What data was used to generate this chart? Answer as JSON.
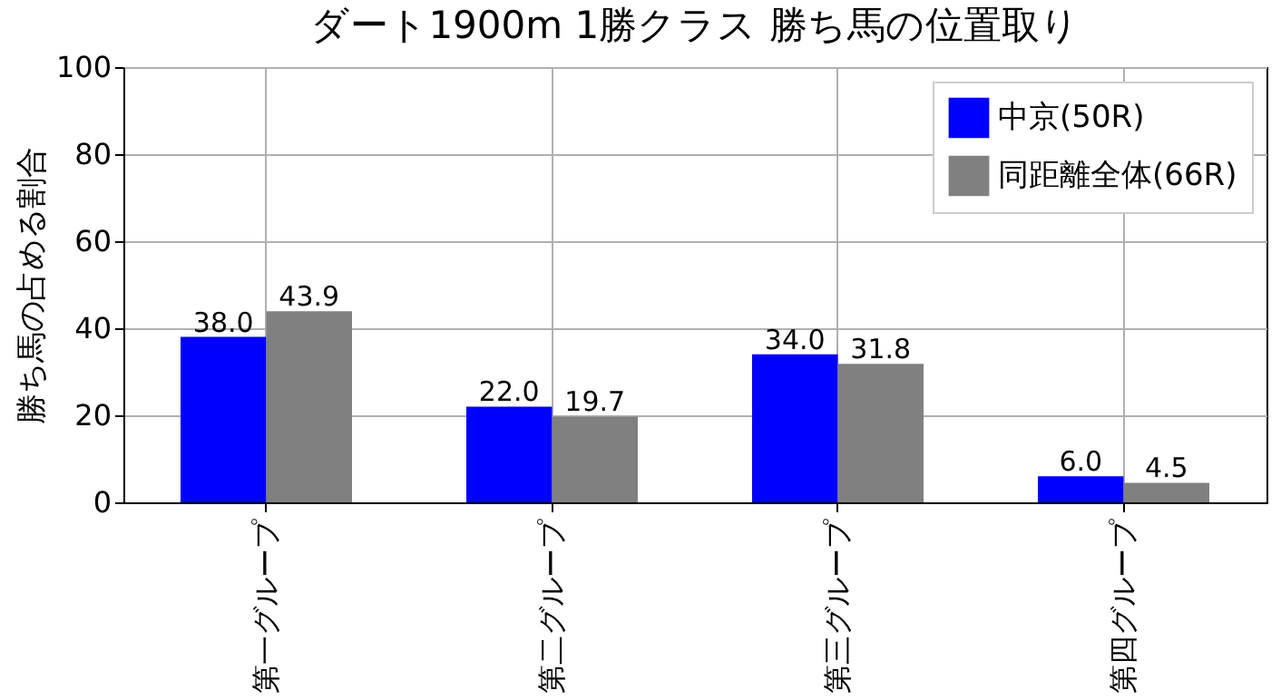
{
  "chart_data": {
    "type": "bar",
    "title": "ダート1900m 1勝クラス 勝ち馬の位置取り",
    "ylabel": "勝ち馬の占める割合",
    "categories": [
      "第一グループ",
      "第二グループ",
      "第三グループ",
      "第四グループ"
    ],
    "series": [
      {
        "name": "中京(50R)",
        "color": "#0000ff",
        "values": [
          38.0,
          22.0,
          34.0,
          6.0
        ],
        "value_labels": [
          "38.0",
          "22.0",
          "34.0",
          "6.0"
        ]
      },
      {
        "name": "同距離全体(66R)",
        "color": "#808080",
        "values": [
          43.9,
          19.7,
          31.8,
          4.5
        ],
        "value_labels": [
          "43.9",
          "19.7",
          "31.8",
          "4.5"
        ]
      }
    ],
    "ylim": [
      0,
      100
    ],
    "yticks": [
      0,
      20,
      40,
      60,
      80,
      100
    ],
    "grid": true,
    "legend": "top right"
  }
}
